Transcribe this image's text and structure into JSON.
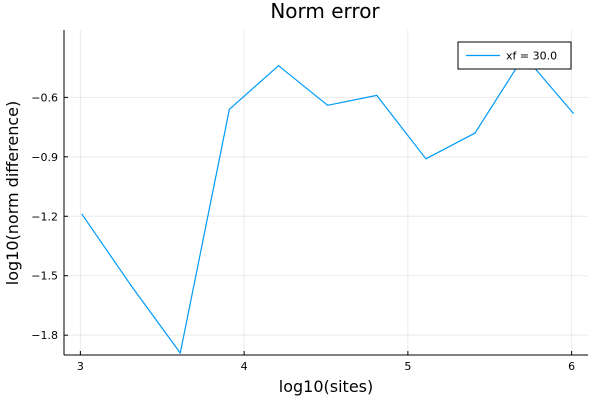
{
  "chart_data": {
    "type": "line",
    "title": "Norm error",
    "xlabel": "log10(sites)",
    "ylabel": "log10(norm difference)",
    "xlim": [
      2.9,
      6.1
    ],
    "ylim": [
      -1.9,
      -0.26
    ],
    "xticks": [
      3,
      4,
      5,
      6
    ],
    "xtick_labels": [
      "3",
      "4",
      "5",
      "6"
    ],
    "yticks": [
      -1.8,
      -1.5,
      -1.2,
      -0.9,
      -0.6
    ],
    "ytick_labels": [
      "-1.8",
      "-1.5",
      "-1.2",
      "-0.9",
      "-0.6"
    ],
    "grid": true,
    "legend_position": "top-right",
    "series": [
      {
        "name": "xf = 30.0",
        "color": "#009af9",
        "x": [
          3.01,
          3.31,
          3.61,
          3.91,
          4.21,
          4.51,
          4.81,
          5.11,
          5.41,
          5.71,
          6.01
        ],
        "y": [
          -1.19,
          -1.55,
          -1.89,
          -0.66,
          -0.44,
          -0.64,
          -0.59,
          -0.91,
          -0.78,
          -0.39,
          -0.68
        ]
      }
    ]
  }
}
